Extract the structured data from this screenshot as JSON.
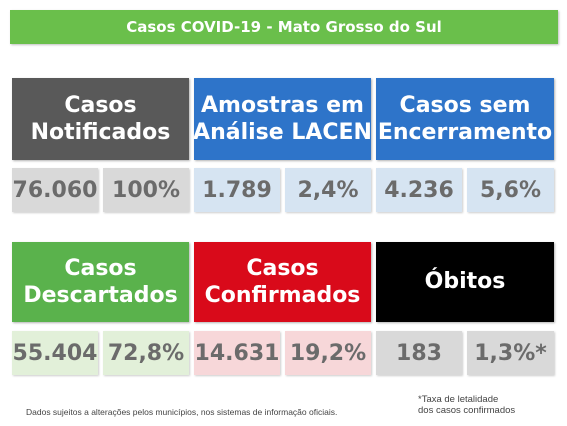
{
  "title": "Casos COVID-19 - Mato Grosso do Sul",
  "colors": {
    "banner": "#6abf4b",
    "dark_gray": "#595959",
    "blue": "#2e74c9",
    "green": "#5ab24c",
    "red": "#d90a1a",
    "black": "#000000",
    "tile_gray": "#d9d9d9",
    "tile_blue": "#d6e4f2",
    "tile_green": "#e2f0d9",
    "tile_red": "#f7d7d9"
  },
  "cards": {
    "notificados": {
      "line1": "Casos",
      "line2": "Notificados",
      "value": "76.060",
      "percent": "100%"
    },
    "lacen": {
      "line1": "Amostras em",
      "line2": "Análise LACEN",
      "value": "1.789",
      "percent": "2,4%"
    },
    "sem_encerramento": {
      "line1": "Casos sem",
      "line2": "Encerramento",
      "value": "4.236",
      "percent": "5,6%"
    },
    "descartados": {
      "line1": "Casos",
      "line2": "Descartados",
      "value": "55.404",
      "percent": "72,8%"
    },
    "confirmados": {
      "line1": "Casos",
      "line2": "Confirmados",
      "value": "14.631",
      "percent": "19,2%"
    },
    "obitos": {
      "label": "Óbitos",
      "value": "183",
      "percent": "1,3%*"
    }
  },
  "footer": {
    "disclaimer": "Dados sujeitos a alterações pelos municípios, nos sistemas de informação oficiais.",
    "note_line1": "*Taxa de letalidade",
    "note_line2": "dos casos confirmados"
  }
}
